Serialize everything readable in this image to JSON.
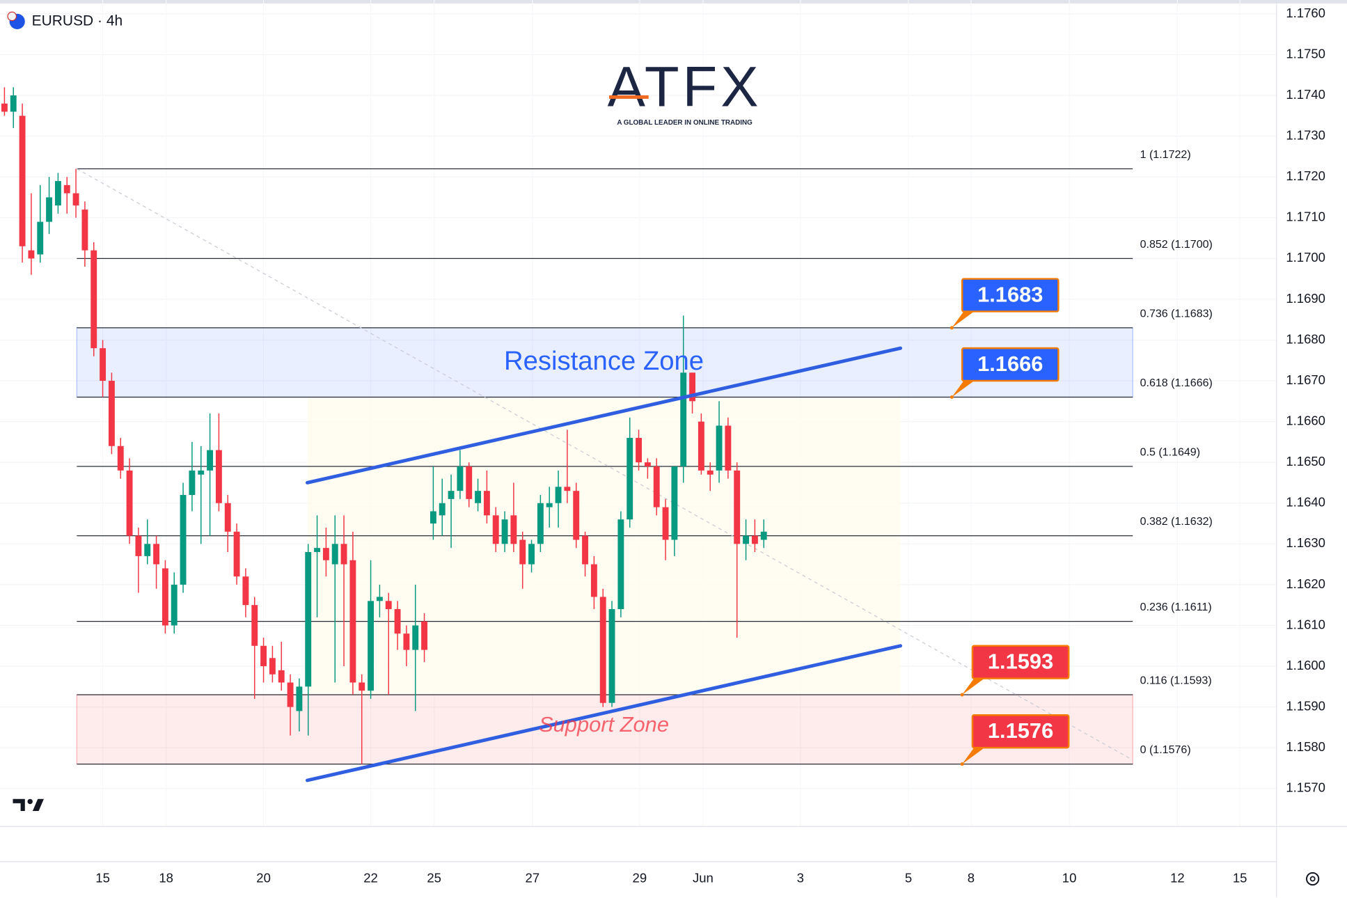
{
  "header": {
    "symbol": "EURUSD · 4h"
  },
  "logo": {
    "name": "ATFX",
    "tagline": "A GLOBAL LEADER IN ONLINE TRADING"
  },
  "chart_data": {
    "type": "candlestick",
    "up_color": "#089981",
    "down_color": "#f23645",
    "x": [
      0,
      1,
      2,
      3,
      4,
      5,
      6,
      7,
      8,
      9,
      10,
      11,
      12,
      13,
      14,
      15,
      16,
      17,
      18,
      19,
      20,
      21,
      22,
      23,
      24,
      25,
      26,
      27,
      28,
      29,
      30,
      31,
      32,
      33,
      34,
      35,
      36,
      37,
      38,
      39,
      40,
      41,
      42,
      43,
      44,
      45,
      46,
      47,
      48,
      49,
      50,
      51,
      52,
      53,
      54,
      55,
      56,
      57,
      58,
      59,
      60,
      61,
      62,
      63,
      64,
      65,
      66,
      67,
      68,
      69,
      70,
      71,
      72,
      73,
      74,
      75,
      76,
      77,
      78,
      79,
      80,
      81,
      82,
      83,
      84,
      85
    ],
    "open": [
      1.1738,
      1.1736,
      1.1735,
      1.1702,
      1.1701,
      1.1709,
      1.1713,
      1.1718,
      1.1716,
      1.1712,
      1.1702,
      1.1678,
      1.167,
      1.1654,
      1.1648,
      1.1632,
      1.1627,
      1.163,
      1.1624,
      1.161,
      1.162,
      1.1642,
      1.1647,
      1.1648,
      1.1653,
      1.164,
      1.1633,
      1.1622,
      1.1615,
      1.1605,
      1.1602,
      1.1599,
      1.1596,
      1.1589,
      1.1595,
      1.1628,
      1.1629,
      1.1625,
      1.163,
      1.1626,
      1.1596,
      1.1594,
      1.1616,
      1.1616,
      1.1614,
      1.1608,
      1.1604,
      1.1611,
      1.1635,
      1.1637,
      1.1641,
      1.1643,
      1.1649,
      1.164,
      1.1643,
      1.1637,
      1.163,
      1.1637,
      1.1631,
      1.1625,
      1.163,
      1.1639,
      1.164,
      1.1644,
      1.1643,
      1.1632,
      1.1625,
      1.1617,
      1.1591,
      1.1614,
      1.1636,
      1.1656,
      1.165,
      1.1649,
      1.1639,
      1.1631,
      1.1649,
      1.1672,
      1.166,
      1.1648,
      1.1648,
      1.1659,
      1.1648,
      1.163,
      1.1632,
      1.1631
    ],
    "high": [
      1.1742,
      1.1742,
      1.1738,
      1.1716,
      1.1718,
      1.172,
      1.1721,
      1.172,
      1.1722,
      1.1714,
      1.1704,
      1.168,
      1.1672,
      1.1656,
      1.1651,
      1.1634,
      1.1636,
      1.1632,
      1.1626,
      1.1623,
      1.1645,
      1.1655,
      1.1654,
      1.1662,
      1.1662,
      1.1642,
      1.1635,
      1.1624,
      1.1617,
      1.1607,
      1.1605,
      1.1606,
      1.1598,
      1.1597,
      1.163,
      1.1637,
      1.1634,
      1.1637,
      1.1637,
      1.1633,
      1.1598,
      1.1626,
      1.162,
      1.1618,
      1.1616,
      1.161,
      1.162,
      1.1613,
      1.1649,
      1.1646,
      1.1647,
      1.1653,
      1.165,
      1.1646,
      1.1648,
      1.1639,
      1.1638,
      1.1645,
      1.1633,
      1.1631,
      1.1642,
      1.1644,
      1.1648,
      1.1658,
      1.1645,
      1.1633,
      1.1627,
      1.1619,
      1.1616,
      1.1638,
      1.1661,
      1.1658,
      1.1651,
      1.1651,
      1.1641,
      1.1649,
      1.1686,
      1.1672,
      1.1662,
      1.165,
      1.1665,
      1.1661,
      1.165,
      1.1636,
      1.1636,
      1.1636
    ],
    "low": [
      1.1735,
      1.1732,
      1.1699,
      1.1696,
      1.1699,
      1.1706,
      1.1711,
      1.1711,
      1.171,
      1.1698,
      1.1676,
      1.1666,
      1.1652,
      1.1646,
      1.163,
      1.1618,
      1.1625,
      1.1619,
      1.1608,
      1.1608,
      1.1618,
      1.1638,
      1.163,
      1.1632,
      1.1638,
      1.1628,
      1.162,
      1.1612,
      1.1592,
      1.1596,
      1.1596,
      1.1594,
      1.1583,
      1.1584,
      1.1583,
      1.1612,
      1.1622,
      1.1596,
      1.16,
      1.1593,
      1.1576,
      1.1592,
      1.1612,
      1.1593,
      1.1604,
      1.16,
      1.1589,
      1.1601,
      1.1631,
      1.1632,
      1.1629,
      1.1641,
      1.1639,
      1.1638,
      1.1635,
      1.1628,
      1.1628,
      1.1628,
      1.1619,
      1.1623,
      1.1628,
      1.1634,
      1.1634,
      1.164,
      1.1629,
      1.1622,
      1.1614,
      1.159,
      1.159,
      1.1612,
      1.1634,
      1.1648,
      1.1646,
      1.1637,
      1.1626,
      1.1627,
      1.1645,
      1.1662,
      1.1647,
      1.1643,
      1.1645,
      1.1646,
      1.1607,
      1.1626,
      1.1628,
      1.1629
    ],
    "close": [
      1.1736,
      1.174,
      1.1703,
      1.17,
      1.1709,
      1.1715,
      1.1719,
      1.1716,
      1.1713,
      1.1702,
      1.1678,
      1.167,
      1.1654,
      1.1648,
      1.1632,
      1.1627,
      1.163,
      1.1625,
      1.161,
      1.162,
      1.1642,
      1.1648,
      1.1648,
      1.1653,
      1.164,
      1.1633,
      1.1622,
      1.1615,
      1.1605,
      1.16,
      1.1598,
      1.1596,
      1.159,
      1.1595,
      1.1628,
      1.1629,
      1.1626,
      1.163,
      1.1625,
      1.1596,
      1.1594,
      1.1616,
      1.1617,
      1.1614,
      1.1608,
      1.1604,
      1.161,
      1.1604,
      1.1638,
      1.164,
      1.1643,
      1.1649,
      1.1641,
      1.1643,
      1.1637,
      1.163,
      1.1636,
      1.163,
      1.1625,
      1.163,
      1.164,
      1.164,
      1.1644,
      1.1643,
      1.1631,
      1.1625,
      1.1617,
      1.1591,
      1.1614,
      1.1636,
      1.1656,
      1.165,
      1.1649,
      1.1639,
      1.1631,
      1.1649,
      1.1672,
      1.1665,
      1.1648,
      1.1647,
      1.1659,
      1.1648,
      1.163,
      1.1632,
      1.163,
      1.1633
    ],
    "xlim": [
      -0.5,
      142.4
    ],
    "ylim": [
      1.15607,
      1.17634
    ],
    "grid": true,
    "xticks": [
      {
        "value": 11.0,
        "label": "15"
      },
      {
        "value": 18.1,
        "label": "18"
      },
      {
        "value": 29.0,
        "label": "20"
      },
      {
        "value": 41.0,
        "label": "22"
      },
      {
        "value": 48.1,
        "label": "25"
      },
      {
        "value": 59.1,
        "label": "27"
      },
      {
        "value": 71.1,
        "label": "29"
      },
      {
        "value": 78.2,
        "label": "Jun"
      },
      {
        "value": 89.1,
        "label": "3"
      },
      {
        "value": 101.2,
        "label": "5"
      },
      {
        "value": 108.2,
        "label": "8"
      },
      {
        "value": 119.2,
        "label": "10"
      },
      {
        "value": 131.3,
        "label": "12"
      },
      {
        "value": 138.3,
        "label": "15"
      }
    ],
    "yticks": [
      {
        "value": 1.157,
        "label": "1.1570"
      },
      {
        "value": 1.158,
        "label": "1.1580"
      },
      {
        "value": 1.159,
        "label": "1.1590"
      },
      {
        "value": 1.16,
        "label": "1.1600"
      },
      {
        "value": 1.161,
        "label": "1.1610"
      },
      {
        "value": 1.162,
        "label": "1.1620"
      },
      {
        "value": 1.163,
        "label": "1.1630"
      },
      {
        "value": 1.164,
        "label": "1.1640"
      },
      {
        "value": 1.165,
        "label": "1.1650"
      },
      {
        "value": 1.166,
        "label": "1.1660"
      },
      {
        "value": 1.167,
        "label": "1.1670"
      },
      {
        "value": 1.168,
        "label": "1.1680"
      },
      {
        "value": 1.169,
        "label": "1.1690"
      },
      {
        "value": 1.17,
        "label": "1.1700"
      },
      {
        "value": 1.171,
        "label": "1.1710"
      },
      {
        "value": 1.172,
        "label": "1.1720"
      },
      {
        "value": 1.173,
        "label": "1.1730"
      },
      {
        "value": 1.174,
        "label": "1.1740"
      },
      {
        "value": 1.175,
        "label": "1.1750"
      },
      {
        "value": 1.176,
        "label": "1.1760"
      }
    ],
    "levels_xlim": [
      8.1,
      126.3
    ],
    "levels": [
      {
        "label": "1 (1.1722)",
        "value": 1.1722
      },
      {
        "label": "0.852 (1.1700)",
        "value": 1.17
      },
      {
        "label": "0.736 (1.1683)",
        "value": 1.1683
      },
      {
        "label": "0.618 (1.1666)",
        "value": 1.1666
      },
      {
        "label": "0.5 (1.1649)",
        "value": 1.1649
      },
      {
        "label": "0.382 (1.1632)",
        "value": 1.1632
      },
      {
        "label": "0.236 (1.1611)",
        "value": 1.1611
      },
      {
        "label": "0.116 (1.1593)",
        "value": 1.1593
      },
      {
        "label": "0 (1.1576)",
        "value": 1.1576
      }
    ],
    "zones": [
      {
        "label": "Resistance Zone",
        "low": 1.1666,
        "high": 1.1683,
        "color": "#2962ff"
      },
      {
        "label": "Support Zone",
        "low": 1.1576,
        "high": 1.1593,
        "color": "#f23645"
      }
    ],
    "channel": [
      {
        "x": [
          33.9,
          100.3
        ],
        "y": [
          1.1645,
          1.1678
        ]
      },
      {
        "x": [
          33.9,
          100.3
        ],
        "y": [
          1.1572,
          1.1605
        ]
      }
    ],
    "channel_color": "#2f5fe0",
    "trend": {
      "x": [
        8.1,
        126.3
      ],
      "y": [
        1.1722,
        1.1577
      ]
    },
    "tags": [
      {
        "value": 1.1683,
        "color": "#2962ff"
      },
      {
        "value": 1.1666,
        "color": "#2962ff"
      },
      {
        "value": 1.1593,
        "color": "#f23645"
      },
      {
        "value": 1.1576,
        "color": "#f23645"
      }
    ]
  }
}
